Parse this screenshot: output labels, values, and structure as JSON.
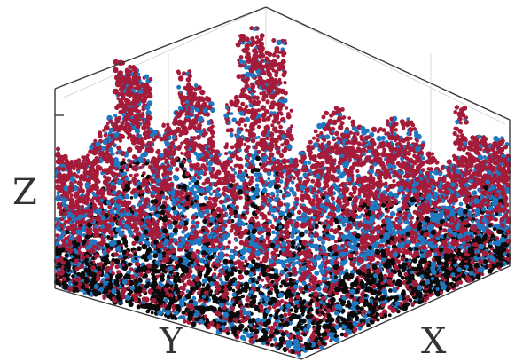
{
  "chart_data": {
    "type": "scatter",
    "projection": "3d",
    "title": "",
    "xlabel": "X",
    "ylabel": "Y",
    "zlabel": "Z",
    "grid": true,
    "legend": "none",
    "series": [
      {
        "color": "#a51c3a",
        "description_level": "upper",
        "z_range": [
          0.15,
          1.0
        ]
      },
      {
        "color": "#1f78c2",
        "description_level": "middle",
        "z_range": [
          0.05,
          0.85
        ]
      },
      {
        "color": "#0a0a0a",
        "description_level": "lower",
        "z_range": [
          0.0,
          0.3
        ]
      }
    ]
  },
  "colors": {
    "background": "#ffffff",
    "frame": "#3a3a3a",
    "grid": "#cfcfcf"
  }
}
